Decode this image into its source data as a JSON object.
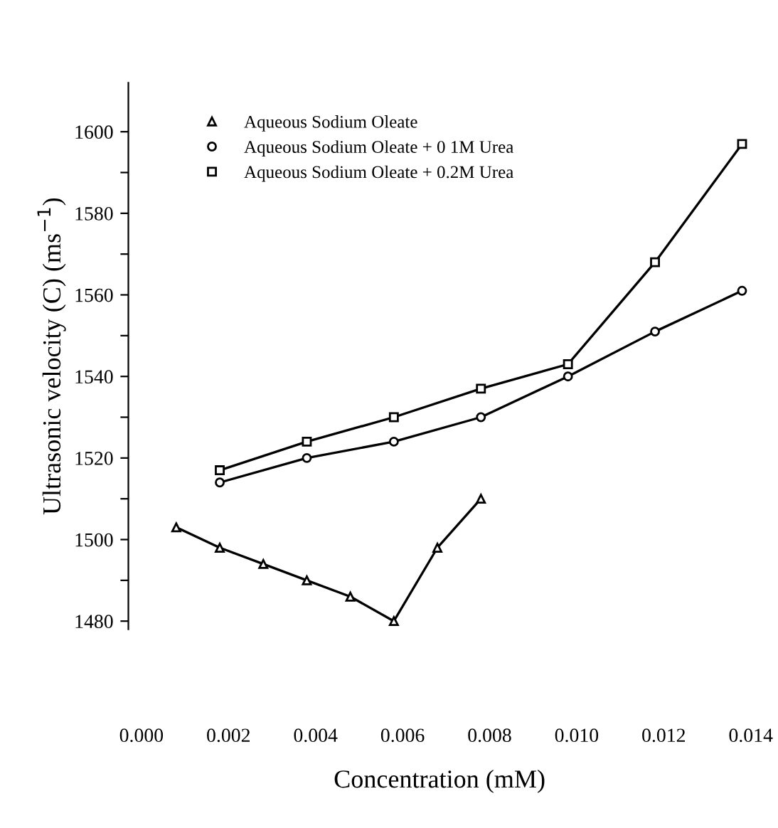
{
  "chart_data": {
    "type": "line",
    "xlabel": "Concentration (mM)",
    "ylabel": "Ultrasonic velocity (C) (ms$^{−1}$)",
    "xlim": [
      -0.0003,
      0.014
    ],
    "ylim": [
      1478,
      1612
    ],
    "xticks": [
      {
        "value": 0,
        "label": "0.000"
      },
      {
        "value": 0.002,
        "label": "0.002"
      },
      {
        "value": 0.004,
        "label": "0.004"
      },
      {
        "value": 0.006,
        "label": "0.006"
      },
      {
        "value": 0.008,
        "label": "0.008"
      },
      {
        "value": 0.01,
        "label": "0.010"
      },
      {
        "value": 0.012,
        "label": "0.012"
      },
      {
        "value": 0.014,
        "label": "0.014"
      }
    ],
    "yticks": [
      1480,
      {
        "value": 1490,
        "label": null
      },
      1500,
      {
        "value": 1510,
        "label": null
      },
      1520,
      {
        "value": 1530,
        "label": null
      },
      1540,
      {
        "value": 1550,
        "label": null
      },
      1560,
      {
        "value": 1570,
        "label": null
      },
      1580,
      {
        "value": 1590,
        "label": null
      },
      1600
    ],
    "grid": false,
    "legend": "top left",
    "line_style": "solid",
    "series": [
      {
        "name": "Aqueous Sodium Oleate",
        "color": "#000000",
        "marker": "triangle",
        "x": [
          0.0008,
          0.0018,
          0.0028,
          0.0038,
          0.0048,
          0.0058,
          0.0068,
          0.0078
        ],
        "values": [
          1503,
          1498,
          1494,
          1490,
          1486,
          1480,
          1498,
          1510
        ]
      },
      {
        "name": "Aqueous Sodium Oleate + 0 1M Urea",
        "color": "#000000",
        "marker": "circle",
        "x": [
          0.0018,
          0.0038,
          0.0058,
          0.0078,
          0.0098,
          0.0118,
          0.0138
        ],
        "values": [
          1514,
          1520,
          1524,
          1530,
          1540,
          1551,
          1561
        ]
      },
      {
        "name": "Aqueous Sodium Oleate + 0.2M Urea",
        "color": "#000000",
        "marker": "square",
        "x": [
          0.0018,
          0.0038,
          0.0058,
          0.0078,
          0.0098,
          0.0118,
          0.0138
        ],
        "values": [
          1517,
          1524,
          1530,
          1537,
          1543,
          1568,
          1597
        ]
      }
    ]
  }
}
